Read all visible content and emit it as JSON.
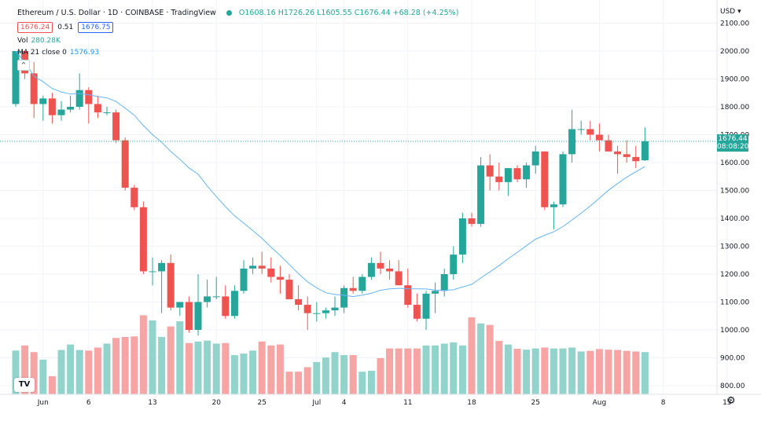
{
  "header": {
    "title": "Ethereum / U.S. Dollar · 1D · COINBASE · TradingView",
    "ohlc": "O1608.16 H1726.26 L1605.55 C1676.44 +68.28 (+4.25%)",
    "sell_price": "1676.24",
    "spread": "0.51",
    "buy_price": "1676.75",
    "vol_label": "Vol",
    "vol_value": "280.28K",
    "ma_label": "MA 21 close 0",
    "ma_value": "1576.93",
    "collapse_icon": "^"
  },
  "price_axis": {
    "currency": "USD",
    "last_price": "1676.44",
    "countdown": "08:08:20"
  },
  "colors": {
    "up": "#26a69a",
    "down": "#ef5350",
    "vol_up": "#92d3cc",
    "vol_down": "#f6a5a4",
    "ma": "#64b5f6",
    "grid": "#f0f3fa"
  },
  "chart_data": {
    "type": "candlestick",
    "y_ticks": [
      800,
      900,
      1000,
      1100,
      1200,
      1300,
      1400,
      1500,
      1600,
      1700,
      1800,
      1900,
      2000,
      2100
    ],
    "y_tick_labels": [
      "800.00",
      "900.00",
      "1000.00",
      "1100.00",
      "1200.00",
      "1300.00",
      "1400.00",
      "1500.00",
      "1600.00",
      "1700.00",
      "1800.00",
      "1900.00",
      "2000.00",
      "2100.00"
    ],
    "ylim": [
      770,
      2120
    ],
    "x_tick_labels": [
      {
        "label": "Jun",
        "index": 3
      },
      {
        "label": "6",
        "index": 8
      },
      {
        "label": "13",
        "index": 15
      },
      {
        "label": "20",
        "index": 22
      },
      {
        "label": "25",
        "index": 27
      },
      {
        "label": "Jul",
        "index": 33
      },
      {
        "label": "4",
        "index": 36
      },
      {
        "label": "11",
        "index": 43
      },
      {
        "label": "18",
        "index": 50
      },
      {
        "label": "25",
        "index": 57
      },
      {
        "label": "Aug",
        "index": 64
      },
      {
        "label": "8",
        "index": 71
      },
      {
        "label": "15",
        "index": 78
      }
    ],
    "last_price": 1676.44,
    "candles": [
      {
        "o": 1810,
        "h": 2000,
        "l": 1800,
        "c": 2000
      },
      {
        "o": 2000,
        "h": 2000,
        "l": 1900,
        "c": 1920
      },
      {
        "o": 1920,
        "h": 1960,
        "l": 1760,
        "c": 1810
      },
      {
        "o": 1810,
        "h": 1840,
        "l": 1750,
        "c": 1830
      },
      {
        "o": 1830,
        "h": 1850,
        "l": 1740,
        "c": 1770
      },
      {
        "o": 1770,
        "h": 1820,
        "l": 1750,
        "c": 1790
      },
      {
        "o": 1790,
        "h": 1840,
        "l": 1780,
        "c": 1800
      },
      {
        "o": 1800,
        "h": 1920,
        "l": 1790,
        "c": 1860
      },
      {
        "o": 1860,
        "h": 1870,
        "l": 1740,
        "c": 1810
      },
      {
        "o": 1810,
        "h": 1840,
        "l": 1760,
        "c": 1780
      },
      {
        "o": 1780,
        "h": 1800,
        "l": 1770,
        "c": 1780
      },
      {
        "o": 1780,
        "h": 1790,
        "l": 1670,
        "c": 1680
      },
      {
        "o": 1680,
        "h": 1690,
        "l": 1500,
        "c": 1510
      },
      {
        "o": 1510,
        "h": 1520,
        "l": 1430,
        "c": 1440
      },
      {
        "o": 1440,
        "h": 1460,
        "l": 1200,
        "c": 1210
      },
      {
        "o": 1210,
        "h": 1260,
        "l": 1160,
        "c": 1210
      },
      {
        "o": 1210,
        "h": 1250,
        "l": 1060,
        "c": 1240
      },
      {
        "o": 1240,
        "h": 1270,
        "l": 1070,
        "c": 1080
      },
      {
        "o": 1080,
        "h": 1100,
        "l": 1050,
        "c": 1100
      },
      {
        "o": 1100,
        "h": 1120,
        "l": 990,
        "c": 1000
      },
      {
        "o": 1000,
        "h": 1200,
        "l": 980,
        "c": 1100
      },
      {
        "o": 1100,
        "h": 1180,
        "l": 1080,
        "c": 1120
      },
      {
        "o": 1120,
        "h": 1190,
        "l": 1110,
        "c": 1120
      },
      {
        "o": 1120,
        "h": 1160,
        "l": 1040,
        "c": 1050
      },
      {
        "o": 1050,
        "h": 1160,
        "l": 1040,
        "c": 1140
      },
      {
        "o": 1140,
        "h": 1250,
        "l": 1130,
        "c": 1220
      },
      {
        "o": 1220,
        "h": 1260,
        "l": 1200,
        "c": 1230
      },
      {
        "o": 1230,
        "h": 1280,
        "l": 1200,
        "c": 1220
      },
      {
        "o": 1220,
        "h": 1260,
        "l": 1170,
        "c": 1190
      },
      {
        "o": 1190,
        "h": 1230,
        "l": 1130,
        "c": 1180
      },
      {
        "o": 1180,
        "h": 1200,
        "l": 1110,
        "c": 1110
      },
      {
        "o": 1110,
        "h": 1160,
        "l": 1070,
        "c": 1090
      },
      {
        "o": 1090,
        "h": 1120,
        "l": 1000,
        "c": 1060
      },
      {
        "o": 1060,
        "h": 1100,
        "l": 1030,
        "c": 1060
      },
      {
        "o": 1060,
        "h": 1080,
        "l": 1040,
        "c": 1070
      },
      {
        "o": 1070,
        "h": 1120,
        "l": 1050,
        "c": 1080
      },
      {
        "o": 1080,
        "h": 1160,
        "l": 1060,
        "c": 1150
      },
      {
        "o": 1150,
        "h": 1190,
        "l": 1130,
        "c": 1140
      },
      {
        "o": 1140,
        "h": 1200,
        "l": 1130,
        "c": 1190
      },
      {
        "o": 1190,
        "h": 1260,
        "l": 1180,
        "c": 1240
      },
      {
        "o": 1240,
        "h": 1280,
        "l": 1200,
        "c": 1220
      },
      {
        "o": 1220,
        "h": 1250,
        "l": 1180,
        "c": 1210
      },
      {
        "o": 1210,
        "h": 1250,
        "l": 1160,
        "c": 1160
      },
      {
        "o": 1160,
        "h": 1220,
        "l": 1080,
        "c": 1090
      },
      {
        "o": 1090,
        "h": 1130,
        "l": 1030,
        "c": 1040
      },
      {
        "o": 1040,
        "h": 1140,
        "l": 1000,
        "c": 1130
      },
      {
        "o": 1130,
        "h": 1170,
        "l": 1060,
        "c": 1140
      },
      {
        "o": 1140,
        "h": 1220,
        "l": 1120,
        "c": 1200
      },
      {
        "o": 1200,
        "h": 1300,
        "l": 1180,
        "c": 1270
      },
      {
        "o": 1270,
        "h": 1420,
        "l": 1240,
        "c": 1400
      },
      {
        "o": 1400,
        "h": 1420,
        "l": 1370,
        "c": 1380
      },
      {
        "o": 1380,
        "h": 1620,
        "l": 1370,
        "c": 1590
      },
      {
        "o": 1590,
        "h": 1630,
        "l": 1500,
        "c": 1550
      },
      {
        "o": 1550,
        "h": 1600,
        "l": 1500,
        "c": 1530
      },
      {
        "o": 1530,
        "h": 1580,
        "l": 1480,
        "c": 1580
      },
      {
        "o": 1580,
        "h": 1590,
        "l": 1530,
        "c": 1540
      },
      {
        "o": 1540,
        "h": 1600,
        "l": 1510,
        "c": 1590
      },
      {
        "o": 1590,
        "h": 1660,
        "l": 1560,
        "c": 1640
      },
      {
        "o": 1640,
        "h": 1640,
        "l": 1430,
        "c": 1440
      },
      {
        "o": 1440,
        "h": 1460,
        "l": 1360,
        "c": 1450
      },
      {
        "o": 1450,
        "h": 1640,
        "l": 1440,
        "c": 1630
      },
      {
        "o": 1630,
        "h": 1790,
        "l": 1600,
        "c": 1720
      },
      {
        "o": 1720,
        "h": 1750,
        "l": 1700,
        "c": 1720
      },
      {
        "o": 1720,
        "h": 1750,
        "l": 1680,
        "c": 1700
      },
      {
        "o": 1700,
        "h": 1740,
        "l": 1640,
        "c": 1680
      },
      {
        "o": 1680,
        "h": 1700,
        "l": 1640,
        "c": 1640
      },
      {
        "o": 1640,
        "h": 1660,
        "l": 1560,
        "c": 1630
      },
      {
        "o": 1630,
        "h": 1680,
        "l": 1600,
        "c": 1620
      },
      {
        "o": 1620,
        "h": 1660,
        "l": 1580,
        "c": 1605
      },
      {
        "o": 1608.16,
        "h": 1726.26,
        "l": 1605.55,
        "c": 1676.44
      }
    ],
    "volumes": [
      145,
      162,
      140,
      115,
      60,
      147,
      165,
      147,
      145,
      155,
      168,
      187,
      190,
      192,
      262,
      245,
      190,
      225,
      242,
      170,
      175,
      178,
      168,
      170,
      130,
      135,
      145,
      175,
      162,
      165,
      75,
      75,
      90,
      107,
      122,
      140,
      130,
      130,
      75,
      78,
      120,
      152,
      152,
      152,
      152,
      162,
      162,
      168,
      172,
      162,
      255,
      235,
      230,
      177,
      165,
      151,
      148,
      152,
      155,
      152,
      152,
      155,
      142,
      144,
      150,
      148,
      147,
      144,
      142,
      140
    ]
  }
}
